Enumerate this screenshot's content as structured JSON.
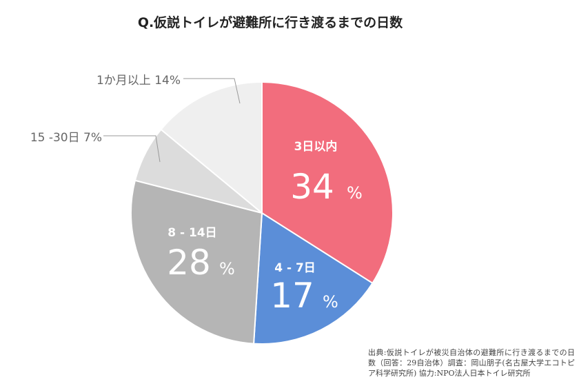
{
  "chart_data": {
    "type": "pie",
    "title": "Q.仮説トイレが避難所に行き渡るまでの日数",
    "percent_sign": "%",
    "slices": [
      {
        "category": "3日以内",
        "value": 34,
        "color": "#f26d7d",
        "label_position": "inside"
      },
      {
        "category": "4 - 7日",
        "value": 17,
        "color": "#5b8ed8",
        "label_position": "inside"
      },
      {
        "category": "8 - 14日",
        "value": 28,
        "color": "#b5b5b5",
        "label_position": "inside"
      },
      {
        "category": "15 -30日",
        "value": 7,
        "color": "#dcdcdc",
        "label_position": "outside"
      },
      {
        "category": "1か月以上",
        "value": 14,
        "color": "#efefef",
        "label_position": "outside"
      }
    ]
  },
  "source": "出典:仮説トイレが被災自治体の避難所に行き渡るまでの日数（回答：29自治体）調査：岡山朋子(名古屋大学エコトピア科学研究所) 協力:NPO法人日本トイレ研究所"
}
